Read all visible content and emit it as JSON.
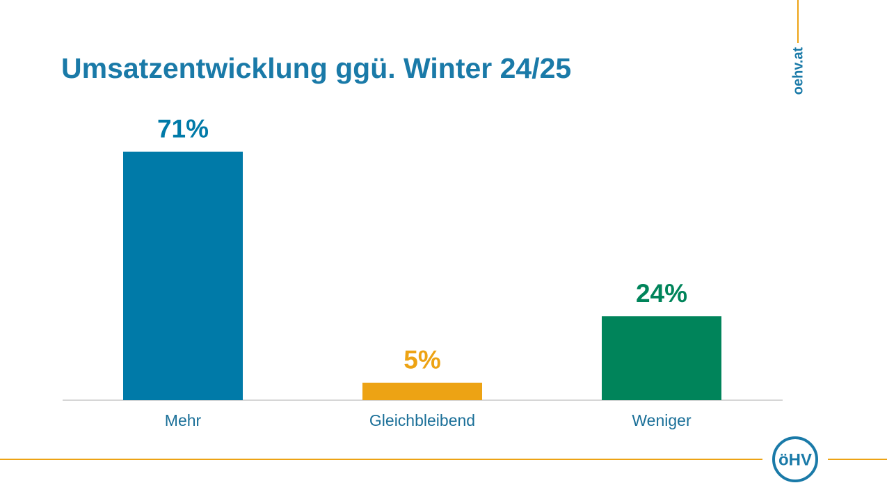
{
  "chart_data": {
    "type": "bar",
    "title": "Umsatzentwicklung ggü. Winter 24/25",
    "categories": [
      "Mehr",
      "Gleichbleibend",
      "Weniger"
    ],
    "values": [
      71,
      5,
      24
    ],
    "value_labels": [
      "71%",
      "5%",
      "24%"
    ],
    "colors": [
      "#007aa8",
      "#eda314",
      "#00845a"
    ]
  },
  "branding": {
    "url": "oehv.at",
    "logo": "öHV"
  }
}
